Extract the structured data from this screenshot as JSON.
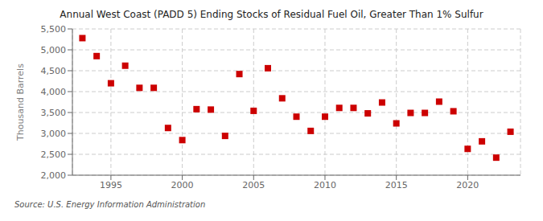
{
  "chart_data": {
    "type": "scatter",
    "title": "Annual West Coast (PADD 5) Ending Stocks of Residual Fuel Oil, Greater Than 1% Sulfur",
    "y_label": "Thousand Barrels",
    "annotations": [
      "Source: U.S. Energy Information Administration"
    ],
    "x": [
      1993,
      1994,
      1995,
      1996,
      1997,
      1998,
      1999,
      2000,
      2001,
      2002,
      2003,
      2004,
      2005,
      2006,
      2007,
      2008,
      2009,
      2010,
      2011,
      2012,
      2013,
      2014,
      2015,
      2016,
      2017,
      2018,
      2019,
      2020,
      2021,
      2022,
      2023
    ],
    "values": [
      5280,
      4850,
      4200,
      4620,
      4090,
      4090,
      3130,
      2840,
      3580,
      3570,
      2940,
      4420,
      3540,
      4560,
      3840,
      3400,
      3060,
      3400,
      3610,
      3610,
      3480,
      3740,
      3240,
      3490,
      3490,
      3760,
      3530,
      2630,
      2810,
      2420,
      3040
    ],
    "color": "#cc0000",
    "marker": "square",
    "xlim": [
      1992.3,
      2023.7
    ],
    "xticks": [
      1995,
      2000,
      2005,
      2010,
      2015,
      2020
    ],
    "ylim": [
      2000,
      5500
    ],
    "yticks": [
      {
        "value": 2000,
        "label": "2,000"
      },
      {
        "value": 2500,
        "label": "2,500"
      },
      {
        "value": 3000,
        "label": "3,000"
      },
      {
        "value": 3500,
        "label": "3,500"
      },
      {
        "value": 4000,
        "label": "4,000"
      },
      {
        "value": 4500,
        "label": "4,500"
      },
      {
        "value": 5000,
        "label": "5,000"
      },
      {
        "value": 5500,
        "label": "5,500"
      }
    ],
    "grid": true
  }
}
